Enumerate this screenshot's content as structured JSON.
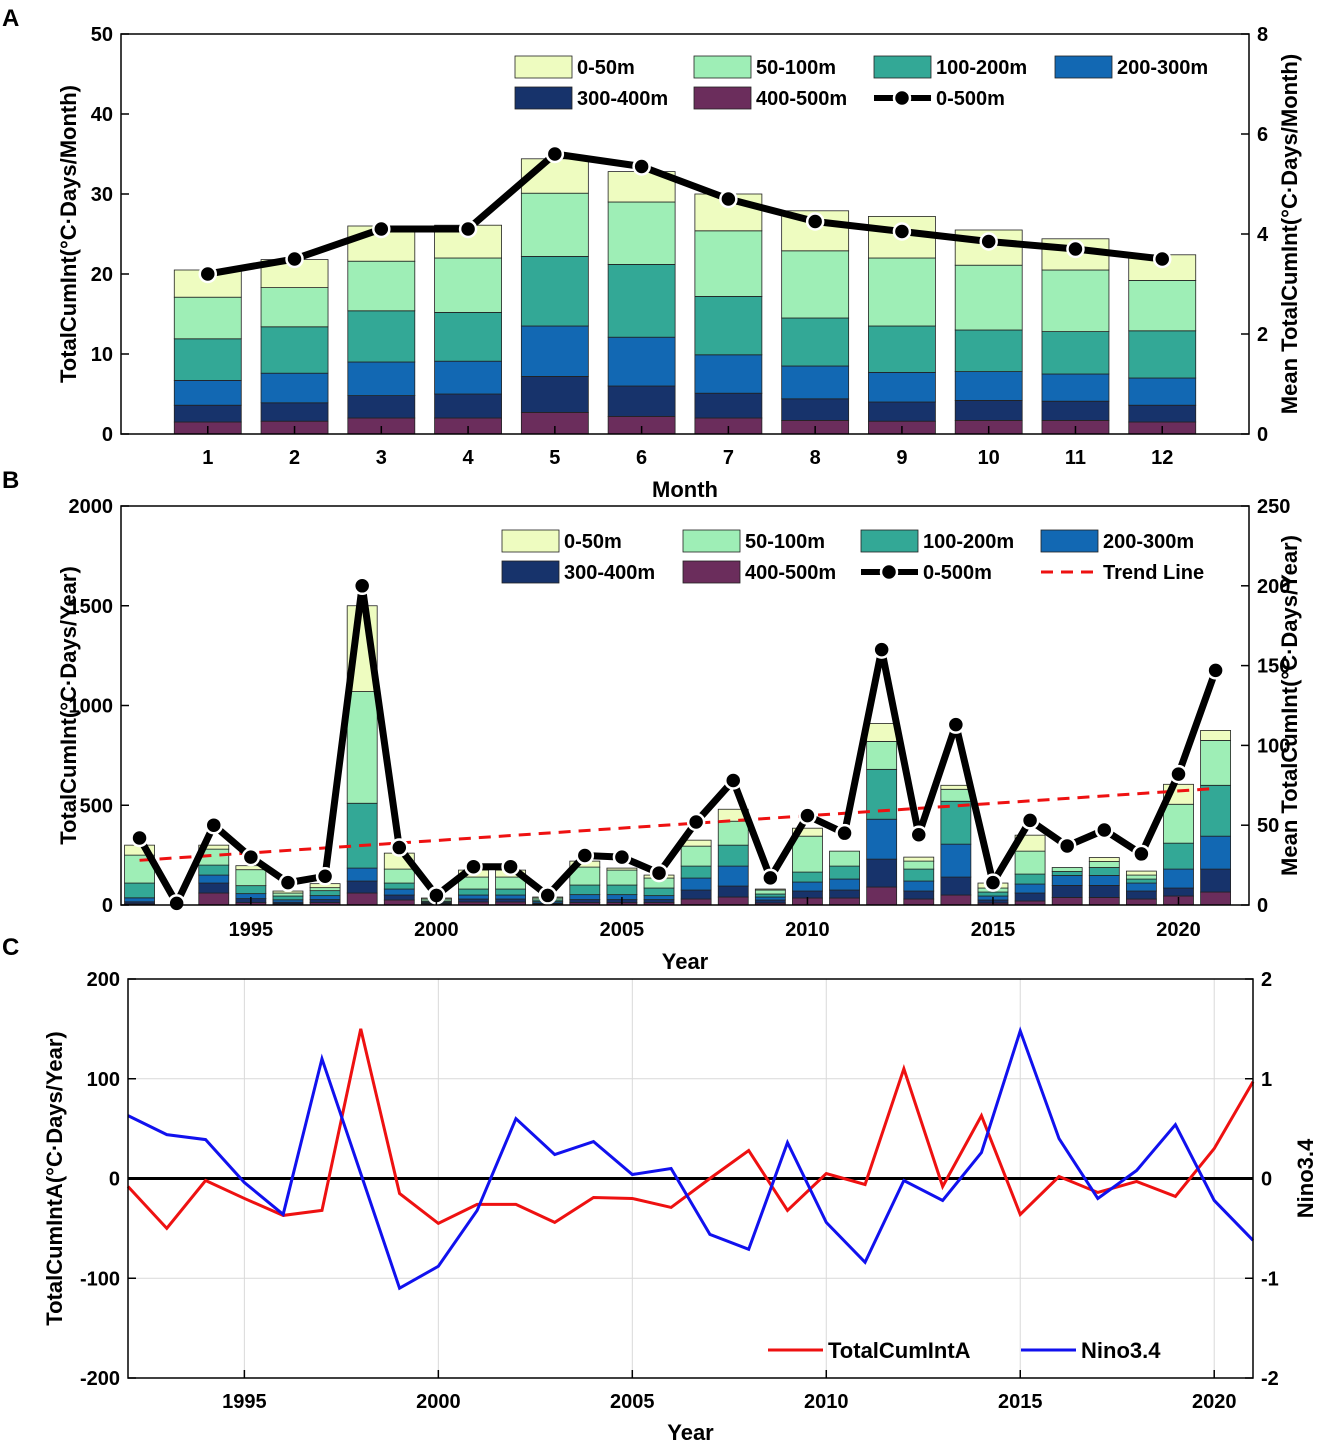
{
  "chart_data": [
    {
      "panel_label": "A",
      "type": "bar",
      "stacked": true,
      "xlabel": "Month",
      "ylabel": "TotalCumInt(°C·Days/Month)",
      "ylabel_right": "Mean TotalCumInt(°C·Days/Month)",
      "ylim": [
        0,
        50
      ],
      "ylim_right": [
        0,
        8
      ],
      "yticks": [
        0,
        10,
        20,
        30,
        40,
        50
      ],
      "yticks_right": [
        0,
        2,
        4,
        6,
        8
      ],
      "categories": [
        "1",
        "2",
        "3",
        "4",
        "5",
        "6",
        "7",
        "8",
        "9",
        "10",
        "11",
        "12"
      ],
      "series": [
        {
          "name": "400-500m",
          "color": "#6b2d5c",
          "values": [
            1.5,
            1.6,
            2.0,
            2.0,
            2.7,
            2.2,
            2.0,
            1.7,
            1.6,
            1.7,
            1.7,
            1.5
          ]
        },
        {
          "name": "300-400m",
          "color": "#17336b",
          "values": [
            2.1,
            2.3,
            2.8,
            3.0,
            4.5,
            3.8,
            3.1,
            2.7,
            2.4,
            2.5,
            2.4,
            2.1
          ]
        },
        {
          "name": "200-300m",
          "color": "#1268b3",
          "values": [
            3.1,
            3.7,
            4.2,
            4.1,
            6.3,
            6.1,
            4.8,
            4.1,
            3.7,
            3.6,
            3.4,
            3.4
          ]
        },
        {
          "name": "100-200m",
          "color": "#33a896",
          "values": [
            5.2,
            5.8,
            6.4,
            6.1,
            8.7,
            9.1,
            7.3,
            6.0,
            5.8,
            5.2,
            5.3,
            5.9
          ]
        },
        {
          "name": "50-100m",
          "color": "#9eeeb6",
          "values": [
            5.2,
            4.9,
            6.2,
            6.8,
            7.9,
            7.8,
            8.2,
            8.4,
            8.5,
            8.1,
            7.7,
            6.3
          ]
        },
        {
          "name": "0-50m",
          "color": "#eefcc0",
          "values": [
            3.4,
            3.5,
            4.4,
            4.1,
            4.3,
            3.8,
            4.6,
            5.0,
            5.2,
            4.4,
            3.9,
            3.2
          ]
        }
      ],
      "line_series": {
        "name": "0-500m",
        "axis": "right",
        "color": "#000000",
        "values": [
          3.2,
          3.5,
          4.1,
          4.1,
          5.6,
          5.35,
          4.7,
          4.25,
          4.05,
          3.85,
          3.7,
          3.5
        ]
      },
      "legend": [
        "0-50m",
        "50-100m",
        "100-200m",
        "200-300m",
        "300-400m",
        "400-500m",
        "0-500m"
      ],
      "legend_position": "top-right",
      "grid": false
    },
    {
      "panel_label": "B",
      "type": "bar",
      "stacked": true,
      "xlabel": "Year",
      "ylabel": "TotalCumInt(°C·Days/Year)",
      "ylabel_right": "Mean TotalCumInt(°C·Days/Year)",
      "ylim": [
        0,
        2000
      ],
      "ylim_right": [
        0,
        250
      ],
      "xlim": [
        1991.5,
        2021.9
      ],
      "yticks": [
        0,
        500,
        1000,
        1500,
        2000
      ],
      "yticks_right": [
        0,
        50,
        100,
        150,
        200,
        250
      ],
      "xticks": [
        1995,
        2000,
        2005,
        2010,
        2015,
        2020
      ],
      "x": [
        1992,
        1993,
        1994,
        1995,
        1996,
        1997,
        1998,
        1999,
        2000,
        2001,
        2002,
        2003,
        2004,
        2005,
        2006,
        2007,
        2008,
        2009,
        2010,
        2011,
        2012,
        2013,
        2014,
        2015,
        2016,
        2017,
        2018,
        2019,
        2020,
        2021
      ],
      "series": [
        {
          "name": "400-500m",
          "color": "#6b2d5c",
          "values": [
            6,
            0,
            60,
            12,
            6,
            12,
            60,
            25,
            5,
            15,
            15,
            5,
            12,
            12,
            12,
            30,
            40,
            10,
            35,
            35,
            90,
            30,
            50,
            10,
            20,
            38,
            38,
            30,
            45,
            65
          ]
        },
        {
          "name": "300-400m",
          "color": "#17336b",
          "values": [
            10,
            0,
            50,
            20,
            8,
            15,
            60,
            25,
            5,
            15,
            15,
            5,
            15,
            15,
            15,
            45,
            55,
            15,
            35,
            40,
            140,
            40,
            90,
            15,
            40,
            60,
            60,
            40,
            40,
            115
          ]
        },
        {
          "name": "200-300m",
          "color": "#1268b3",
          "values": [
            20,
            0,
            40,
            25,
            12,
            20,
            65,
            30,
            5,
            20,
            20,
            7,
            25,
            25,
            20,
            60,
            100,
            15,
            45,
            55,
            200,
            50,
            165,
            20,
            45,
            50,
            50,
            40,
            95,
            165
          ]
        },
        {
          "name": "100-200m",
          "color": "#33a896",
          "values": [
            74,
            0,
            50,
            40,
            19,
            25,
            325,
            30,
            5,
            30,
            30,
            8,
            48,
            48,
            38,
            60,
            105,
            15,
            50,
            65,
            250,
            60,
            215,
            20,
            50,
            20,
            40,
            20,
            130,
            255
          ]
        },
        {
          "name": "50-100m",
          "color": "#9eeeb6",
          "values": [
            140,
            0,
            80,
            80,
            15,
            15,
            560,
            70,
            10,
            60,
            60,
            10,
            90,
            75,
            50,
            100,
            120,
            20,
            180,
            75,
            140,
            40,
            60,
            20,
            115,
            20,
            30,
            20,
            195,
            225
          ]
        },
        {
          "name": "0-50m",
          "color": "#eefcc0",
          "values": [
            50,
            0,
            20,
            20,
            10,
            20,
            430,
            80,
            5,
            35,
            35,
            5,
            30,
            10,
            15,
            30,
            60,
            5,
            40,
            0,
            90,
            20,
            20,
            25,
            80,
            0,
            20,
            20,
            100,
            50
          ]
        }
      ],
      "line_series": {
        "name": "0-500m",
        "axis": "right",
        "color": "#000000",
        "values": [
          42,
          1,
          50,
          30,
          14,
          18,
          200,
          36,
          6,
          24,
          24,
          6,
          31,
          30,
          20,
          52,
          78,
          17,
          56,
          45,
          160,
          44,
          113,
          14,
          53,
          37,
          47,
          32,
          82,
          147
        ]
      },
      "trend_line": {
        "name": "Trend Line",
        "axis": "right",
        "color": "#ee1111",
        "style": "dashed",
        "x": [
          1992,
          2021
        ],
        "values": [
          28,
          73
        ]
      },
      "legend": [
        "0-50m",
        "50-100m",
        "100-200m",
        "200-300m",
        "300-400m",
        "400-500m",
        "0-500m",
        "Trend Line"
      ],
      "legend_position": "top-right",
      "grid": false
    },
    {
      "panel_label": "C",
      "type": "line",
      "xlabel": "Year",
      "ylabel": "TotalCumIntA(°C·Days/Year)",
      "ylabel_right": "Nino3.4",
      "ylim": [
        -200,
        200
      ],
      "ylim_right": [
        -2,
        2
      ],
      "xlim": [
        1992,
        2021
      ],
      "yticks": [
        -200,
        -100,
        0,
        100,
        200
      ],
      "yticks_right": [
        -2,
        -1,
        0,
        1,
        2
      ],
      "xticks": [
        1995,
        2000,
        2005,
        2010,
        2015,
        2020
      ],
      "x": [
        1992,
        1993,
        1994,
        1995,
        1996,
        1997,
        1998,
        1999,
        2000,
        2001,
        2002,
        2003,
        2004,
        2005,
        2006,
        2007,
        2008,
        2009,
        2010,
        2011,
        2012,
        2013,
        2014,
        2015,
        2016,
        2017,
        2018,
        2019,
        2020,
        2021
      ],
      "series": [
        {
          "name": "TotalCumIntA",
          "axis": "left",
          "color": "#ee1111",
          "values": [
            -8,
            -50,
            -2,
            -20,
            -37,
            -32,
            150,
            -15,
            -45,
            -26,
            -26,
            -44,
            -19,
            -20,
            -29,
            0,
            28,
            -32,
            5,
            -6,
            110,
            -8,
            63,
            -36,
            2,
            -14,
            -3,
            -18,
            30,
            97
          ]
        },
        {
          "name": "Nino3.4",
          "axis": "right",
          "color": "#1111ee",
          "values": [
            0.63,
            0.44,
            0.39,
            -0.04,
            -0.36,
            1.2,
            0.05,
            -1.1,
            -0.88,
            -0.32,
            0.6,
            0.24,
            0.37,
            0.04,
            0.1,
            -0.56,
            -0.71,
            0.36,
            -0.44,
            -0.84,
            -0.02,
            -0.22,
            0.26,
            1.48,
            0.4,
            -0.2,
            0.08,
            0.54,
            -0.22,
            -0.62
          ]
        }
      ],
      "zero_line": {
        "color": "#000000",
        "value": 0
      },
      "legend": [
        "TotalCumIntA",
        "Nino3.4"
      ],
      "legend_position": "bottom-right",
      "grid": true
    }
  ]
}
